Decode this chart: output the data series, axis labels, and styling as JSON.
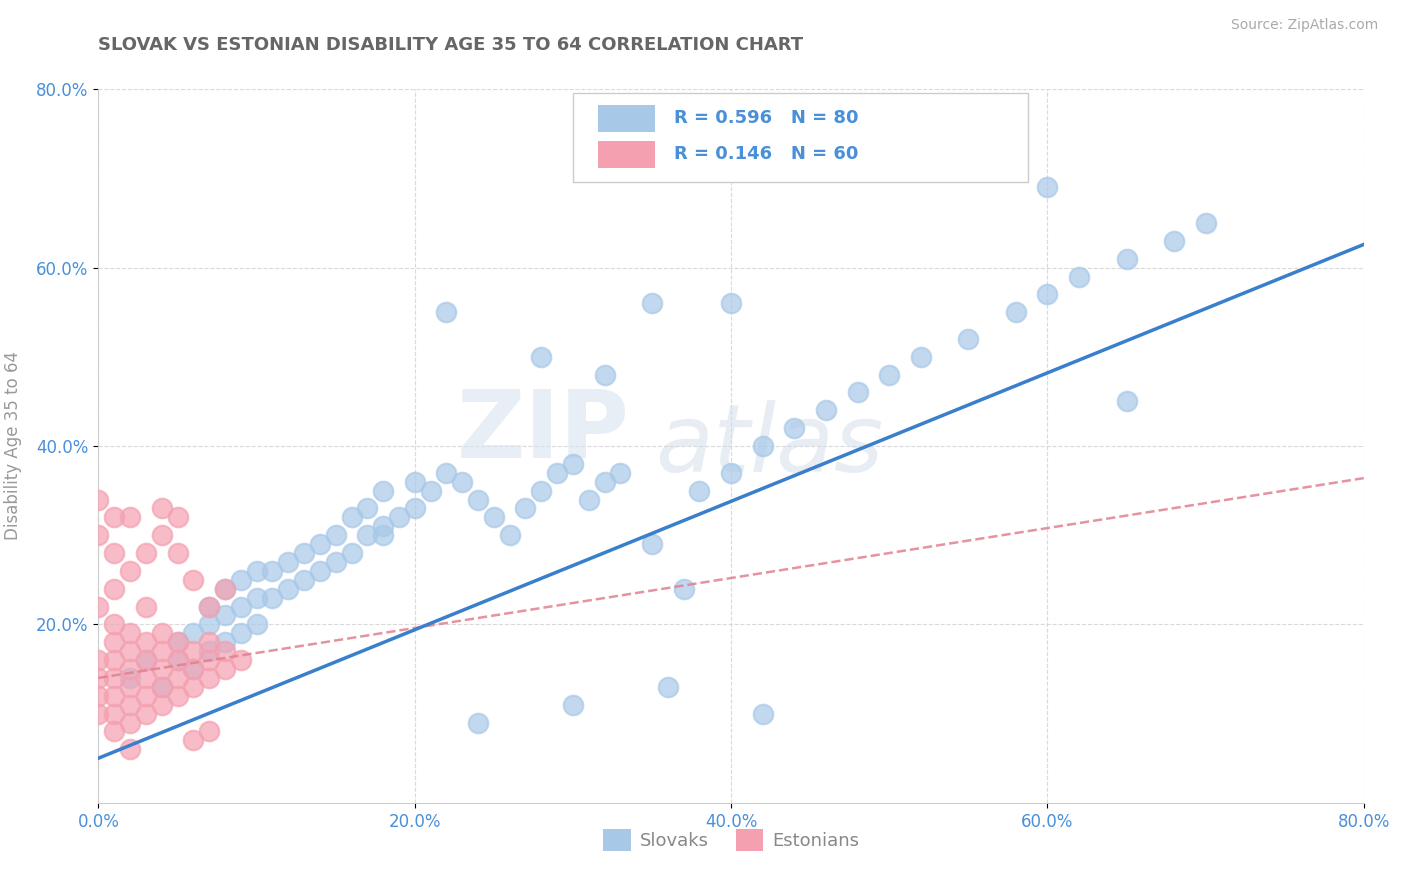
{
  "title": "SLOVAK VS ESTONIAN DISABILITY AGE 35 TO 64 CORRELATION CHART",
  "source": "Source: ZipAtlas.com",
  "ylabel": "Disability Age 35 to 64",
  "xlim": [
    0.0,
    0.8
  ],
  "ylim": [
    0.0,
    0.8
  ],
  "xtick_labels": [
    "0.0%",
    "20.0%",
    "40.0%",
    "60.0%",
    "80.0%"
  ],
  "xtick_vals": [
    0.0,
    0.2,
    0.4,
    0.6,
    0.8
  ],
  "ytick_labels": [
    "20.0%",
    "40.0%",
    "60.0%",
    "80.0%"
  ],
  "ytick_vals": [
    0.2,
    0.4,
    0.6,
    0.8
  ],
  "slovak_color": "#a8c8e8",
  "estonian_color": "#f4a0b0",
  "slovak_line_color": "#3a7fcc",
  "estonian_line_color": "#e08090",
  "R_slovak": 0.596,
  "N_slovak": 80,
  "R_estonian": 0.146,
  "N_estonian": 60,
  "watermark_zip": "ZIP",
  "watermark_atlas": "atlas",
  "background_color": "#ffffff",
  "grid_color": "#d0d0d0",
  "title_color": "#666666",
  "label_color": "#4a90d9",
  "legend_label_slovak": "Slovaks",
  "legend_label_estonian": "Estonians",
  "slovak_line_intercept": 0.05,
  "slovak_line_slope": 0.72,
  "estonian_line_intercept": 0.14,
  "estonian_line_slope": 0.28,
  "slovak_scatter": {
    "x": [
      0.02,
      0.03,
      0.04,
      0.05,
      0.05,
      0.06,
      0.06,
      0.07,
      0.07,
      0.07,
      0.08,
      0.08,
      0.08,
      0.09,
      0.09,
      0.09,
      0.1,
      0.1,
      0.1,
      0.11,
      0.11,
      0.12,
      0.12,
      0.13,
      0.13,
      0.14,
      0.14,
      0.15,
      0.15,
      0.16,
      0.16,
      0.17,
      0.17,
      0.18,
      0.18,
      0.19,
      0.2,
      0.2,
      0.21,
      0.22,
      0.23,
      0.24,
      0.25,
      0.26,
      0.27,
      0.28,
      0.29,
      0.3,
      0.31,
      0.32,
      0.33,
      0.35,
      0.37,
      0.38,
      0.4,
      0.42,
      0.44,
      0.46,
      0.48,
      0.5,
      0.52,
      0.55,
      0.58,
      0.6,
      0.62,
      0.65,
      0.68,
      0.7,
      0.28,
      0.35,
      0.4,
      0.32,
      0.22,
      0.18,
      0.6,
      0.65,
      0.3,
      0.24,
      0.42,
      0.36
    ],
    "y": [
      0.14,
      0.16,
      0.13,
      0.16,
      0.18,
      0.15,
      0.19,
      0.17,
      0.2,
      0.22,
      0.18,
      0.21,
      0.24,
      0.19,
      0.22,
      0.25,
      0.2,
      0.23,
      0.26,
      0.23,
      0.26,
      0.24,
      0.27,
      0.25,
      0.28,
      0.26,
      0.29,
      0.27,
      0.3,
      0.28,
      0.32,
      0.3,
      0.33,
      0.31,
      0.35,
      0.32,
      0.33,
      0.36,
      0.35,
      0.37,
      0.36,
      0.34,
      0.32,
      0.3,
      0.33,
      0.35,
      0.37,
      0.38,
      0.34,
      0.36,
      0.37,
      0.29,
      0.24,
      0.35,
      0.37,
      0.4,
      0.42,
      0.44,
      0.46,
      0.48,
      0.5,
      0.52,
      0.55,
      0.57,
      0.59,
      0.61,
      0.63,
      0.65,
      0.5,
      0.56,
      0.56,
      0.48,
      0.55,
      0.3,
      0.69,
      0.45,
      0.11,
      0.09,
      0.1,
      0.13
    ]
  },
  "estonian_scatter": {
    "x": [
      0.0,
      0.0,
      0.0,
      0.0,
      0.01,
      0.01,
      0.01,
      0.01,
      0.01,
      0.01,
      0.01,
      0.02,
      0.02,
      0.02,
      0.02,
      0.02,
      0.02,
      0.03,
      0.03,
      0.03,
      0.03,
      0.03,
      0.04,
      0.04,
      0.04,
      0.04,
      0.04,
      0.05,
      0.05,
      0.05,
      0.05,
      0.06,
      0.06,
      0.06,
      0.07,
      0.07,
      0.07,
      0.08,
      0.08,
      0.09,
      0.0,
      0.01,
      0.02,
      0.03,
      0.03,
      0.04,
      0.05,
      0.06,
      0.07,
      0.08,
      0.0,
      0.01,
      0.02,
      0.01,
      0.0,
      0.04,
      0.05,
      0.02,
      0.06,
      0.07
    ],
    "y": [
      0.1,
      0.12,
      0.14,
      0.16,
      0.08,
      0.1,
      0.12,
      0.14,
      0.16,
      0.18,
      0.2,
      0.09,
      0.11,
      0.13,
      0.15,
      0.17,
      0.19,
      0.1,
      0.12,
      0.14,
      0.16,
      0.18,
      0.11,
      0.13,
      0.15,
      0.17,
      0.19,
      0.12,
      0.14,
      0.16,
      0.18,
      0.13,
      0.15,
      0.17,
      0.14,
      0.16,
      0.18,
      0.15,
      0.17,
      0.16,
      0.22,
      0.24,
      0.26,
      0.28,
      0.22,
      0.3,
      0.28,
      0.25,
      0.22,
      0.24,
      0.3,
      0.28,
      0.32,
      0.32,
      0.34,
      0.33,
      0.32,
      0.06,
      0.07,
      0.08
    ]
  }
}
